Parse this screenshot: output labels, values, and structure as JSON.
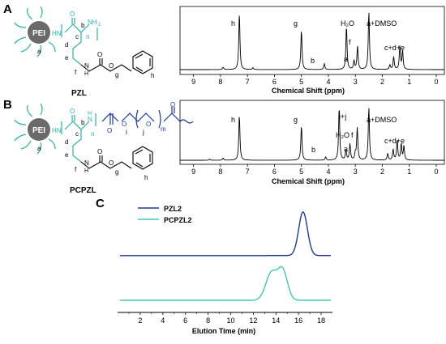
{
  "panels": {
    "a": {
      "letter": "A"
    },
    "b": {
      "letter": "B"
    },
    "c": {
      "letter": "C"
    }
  },
  "structures": {
    "pzl": {
      "core_label": "PEI",
      "name": "PZL",
      "atoms": {
        "hn": "HN",
        "nh2": "NH",
        "nh2_sub": "2",
        "n_sub": "n",
        "o": "O",
        "nh": "N",
        "nh_h": "H"
      },
      "letters": {
        "a": "a",
        "b": "b",
        "c": "c",
        "d": "d",
        "e": "e",
        "f": "f",
        "g": "g",
        "h": "h"
      }
    },
    "pcpzl": {
      "core_label": "PEI",
      "name": "PCPZL",
      "atoms": {
        "hn": "HN",
        "nh": "N",
        "nh_h": "H",
        "n_sub": "n",
        "m_sub": "m",
        "o": "O"
      },
      "letters": {
        "a": "a",
        "b": "b",
        "c": "c",
        "d": "d",
        "e": "e",
        "f": "f",
        "g": "g",
        "h": "h",
        "i": "i",
        "j": "j"
      }
    }
  },
  "nmr_pzl": {
    "xlabel": "Chemical Shift (ppm)",
    "ticks": [
      "9",
      "8",
      "7",
      "6",
      "5",
      "4",
      "3",
      "2",
      "1",
      "0"
    ],
    "peaks": {
      "h": "h",
      "g": "g",
      "b": "b",
      "h2o": "H₂O",
      "a": "a",
      "f": "f",
      "dmso": "a+DMSO",
      "cde": "c+d+e"
    }
  },
  "nmr_pcpzl": {
    "xlabel": "Chemical Shift (ppm)",
    "ticks": [
      "9",
      "8",
      "7",
      "6",
      "5",
      "4",
      "3",
      "2",
      "1",
      "0"
    ],
    "peaks": {
      "h": "h",
      "g": "g",
      "b": "b",
      "ij": "i+j",
      "h2o": "H₂O",
      "a": "a",
      "f": "f",
      "dmso": "a+DMSO",
      "cde": "c+d+e"
    }
  },
  "chart_data": [
    {
      "type": "line",
      "panel": "A",
      "title": "",
      "xlabel": "Chemical Shift (ppm)",
      "ylabel": "",
      "x_reversed": true,
      "xlim": [
        9.5,
        -0.3
      ],
      "xticks": [
        9,
        8,
        7,
        6,
        5,
        4,
        3,
        2,
        1,
        0
      ],
      "series": [
        {
          "peaks_ppm": [
            7.9,
            7.3,
            6.8,
            5.0,
            4.15,
            3.33,
            3.05,
            2.92,
            2.5,
            1.72,
            1.58,
            1.35,
            1.25
          ],
          "heights": [
            0.04,
            0.97,
            0.03,
            0.68,
            0.1,
            0.75,
            0.15,
            0.4,
            1.0,
            0.08,
            0.22,
            0.4,
            0.32
          ]
        }
      ]
    },
    {
      "type": "line",
      "panel": "B",
      "title": "",
      "xlabel": "Chemical Shift (ppm)",
      "ylabel": "",
      "x_reversed": true,
      "xlim": [
        9.5,
        -0.3
      ],
      "xticks": [
        9,
        8,
        7,
        6,
        5,
        4,
        3,
        2,
        1,
        0
      ],
      "series": [
        {
          "peaks_ppm": [
            8.4,
            7.9,
            7.3,
            5.0,
            4.1,
            3.6,
            3.35,
            3.2,
            3.0,
            2.93,
            2.5,
            1.8,
            1.6,
            1.45,
            1.3,
            1.2
          ],
          "heights": [
            0.02,
            0.04,
            0.85,
            0.65,
            0.06,
            1.0,
            0.18,
            0.3,
            0.12,
            0.6,
            1.0,
            0.12,
            0.2,
            0.38,
            0.3,
            0.26
          ]
        }
      ]
    },
    {
      "type": "line",
      "panel": "C",
      "title": "",
      "xlabel": "Elution Time (min)",
      "ylabel": "",
      "xlim": [
        0,
        19
      ],
      "xticks": [
        2,
        4,
        6,
        8,
        10,
        12,
        14,
        16,
        18
      ],
      "series": [
        {
          "name": "PZL2",
          "color": "#1f3a93",
          "peaks": [
            {
              "x": 16.4,
              "h": 0.72,
              "w": 0.55
            }
          ],
          "baseline": 0.03
        },
        {
          "name": "PCPZL2",
          "color": "#40c8b8",
          "peaks": [
            {
              "x": 13.6,
              "h": 0.45,
              "w": 0.7
            },
            {
              "x": 14.6,
              "h": 0.48,
              "w": 0.6
            }
          ],
          "baseline": 0.0
        }
      ]
    }
  ],
  "colors": {
    "teal": "#2bb3a6",
    "navy": "#1f3a93",
    "core": "#6a6a6a",
    "ink": "#000000"
  }
}
